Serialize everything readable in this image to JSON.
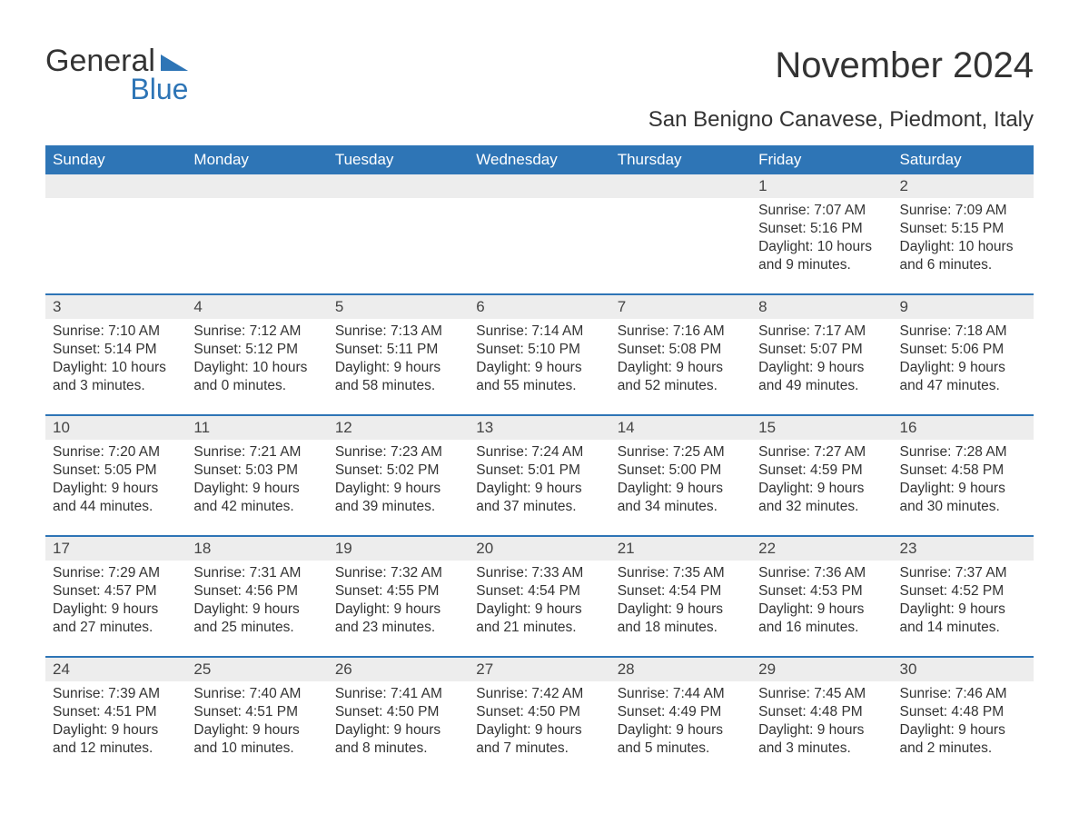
{
  "brand": {
    "word1": "General",
    "word2": "Blue"
  },
  "title": "November 2024",
  "location": "San Benigno Canavese, Piedmont, Italy",
  "colors": {
    "header_blue": "#2e75b6",
    "daynum_bg": "#ededed",
    "text": "#333333",
    "bg": "#ffffff"
  },
  "font": {
    "family": "Arial",
    "title_size": 40,
    "location_size": 24,
    "header_size": 17,
    "body_size": 15.5
  },
  "weekdays": [
    "Sunday",
    "Monday",
    "Tuesday",
    "Wednesday",
    "Thursday",
    "Friday",
    "Saturday"
  ],
  "weeks": [
    [
      null,
      null,
      null,
      null,
      null,
      {
        "n": "1",
        "sunrise": "Sunrise: 7:07 AM",
        "sunset": "Sunset: 5:16 PM",
        "daylight": "Daylight: 10 hours and 9 minutes."
      },
      {
        "n": "2",
        "sunrise": "Sunrise: 7:09 AM",
        "sunset": "Sunset: 5:15 PM",
        "daylight": "Daylight: 10 hours and 6 minutes."
      }
    ],
    [
      {
        "n": "3",
        "sunrise": "Sunrise: 7:10 AM",
        "sunset": "Sunset: 5:14 PM",
        "daylight": "Daylight: 10 hours and 3 minutes."
      },
      {
        "n": "4",
        "sunrise": "Sunrise: 7:12 AM",
        "sunset": "Sunset: 5:12 PM",
        "daylight": "Daylight: 10 hours and 0 minutes."
      },
      {
        "n": "5",
        "sunrise": "Sunrise: 7:13 AM",
        "sunset": "Sunset: 5:11 PM",
        "daylight": "Daylight: 9 hours and 58 minutes."
      },
      {
        "n": "6",
        "sunrise": "Sunrise: 7:14 AM",
        "sunset": "Sunset: 5:10 PM",
        "daylight": "Daylight: 9 hours and 55 minutes."
      },
      {
        "n": "7",
        "sunrise": "Sunrise: 7:16 AM",
        "sunset": "Sunset: 5:08 PM",
        "daylight": "Daylight: 9 hours and 52 minutes."
      },
      {
        "n": "8",
        "sunrise": "Sunrise: 7:17 AM",
        "sunset": "Sunset: 5:07 PM",
        "daylight": "Daylight: 9 hours and 49 minutes."
      },
      {
        "n": "9",
        "sunrise": "Sunrise: 7:18 AM",
        "sunset": "Sunset: 5:06 PM",
        "daylight": "Daylight: 9 hours and 47 minutes."
      }
    ],
    [
      {
        "n": "10",
        "sunrise": "Sunrise: 7:20 AM",
        "sunset": "Sunset: 5:05 PM",
        "daylight": "Daylight: 9 hours and 44 minutes."
      },
      {
        "n": "11",
        "sunrise": "Sunrise: 7:21 AM",
        "sunset": "Sunset: 5:03 PM",
        "daylight": "Daylight: 9 hours and 42 minutes."
      },
      {
        "n": "12",
        "sunrise": "Sunrise: 7:23 AM",
        "sunset": "Sunset: 5:02 PM",
        "daylight": "Daylight: 9 hours and 39 minutes."
      },
      {
        "n": "13",
        "sunrise": "Sunrise: 7:24 AM",
        "sunset": "Sunset: 5:01 PM",
        "daylight": "Daylight: 9 hours and 37 minutes."
      },
      {
        "n": "14",
        "sunrise": "Sunrise: 7:25 AM",
        "sunset": "Sunset: 5:00 PM",
        "daylight": "Daylight: 9 hours and 34 minutes."
      },
      {
        "n": "15",
        "sunrise": "Sunrise: 7:27 AM",
        "sunset": "Sunset: 4:59 PM",
        "daylight": "Daylight: 9 hours and 32 minutes."
      },
      {
        "n": "16",
        "sunrise": "Sunrise: 7:28 AM",
        "sunset": "Sunset: 4:58 PM",
        "daylight": "Daylight: 9 hours and 30 minutes."
      }
    ],
    [
      {
        "n": "17",
        "sunrise": "Sunrise: 7:29 AM",
        "sunset": "Sunset: 4:57 PM",
        "daylight": "Daylight: 9 hours and 27 minutes."
      },
      {
        "n": "18",
        "sunrise": "Sunrise: 7:31 AM",
        "sunset": "Sunset: 4:56 PM",
        "daylight": "Daylight: 9 hours and 25 minutes."
      },
      {
        "n": "19",
        "sunrise": "Sunrise: 7:32 AM",
        "sunset": "Sunset: 4:55 PM",
        "daylight": "Daylight: 9 hours and 23 minutes."
      },
      {
        "n": "20",
        "sunrise": "Sunrise: 7:33 AM",
        "sunset": "Sunset: 4:54 PM",
        "daylight": "Daylight: 9 hours and 21 minutes."
      },
      {
        "n": "21",
        "sunrise": "Sunrise: 7:35 AM",
        "sunset": "Sunset: 4:54 PM",
        "daylight": "Daylight: 9 hours and 18 minutes."
      },
      {
        "n": "22",
        "sunrise": "Sunrise: 7:36 AM",
        "sunset": "Sunset: 4:53 PM",
        "daylight": "Daylight: 9 hours and 16 minutes."
      },
      {
        "n": "23",
        "sunrise": "Sunrise: 7:37 AM",
        "sunset": "Sunset: 4:52 PM",
        "daylight": "Daylight: 9 hours and 14 minutes."
      }
    ],
    [
      {
        "n": "24",
        "sunrise": "Sunrise: 7:39 AM",
        "sunset": "Sunset: 4:51 PM",
        "daylight": "Daylight: 9 hours and 12 minutes."
      },
      {
        "n": "25",
        "sunrise": "Sunrise: 7:40 AM",
        "sunset": "Sunset: 4:51 PM",
        "daylight": "Daylight: 9 hours and 10 minutes."
      },
      {
        "n": "26",
        "sunrise": "Sunrise: 7:41 AM",
        "sunset": "Sunset: 4:50 PM",
        "daylight": "Daylight: 9 hours and 8 minutes."
      },
      {
        "n": "27",
        "sunrise": "Sunrise: 7:42 AM",
        "sunset": "Sunset: 4:50 PM",
        "daylight": "Daylight: 9 hours and 7 minutes."
      },
      {
        "n": "28",
        "sunrise": "Sunrise: 7:44 AM",
        "sunset": "Sunset: 4:49 PM",
        "daylight": "Daylight: 9 hours and 5 minutes."
      },
      {
        "n": "29",
        "sunrise": "Sunrise: 7:45 AM",
        "sunset": "Sunset: 4:48 PM",
        "daylight": "Daylight: 9 hours and 3 minutes."
      },
      {
        "n": "30",
        "sunrise": "Sunrise: 7:46 AM",
        "sunset": "Sunset: 4:48 PM",
        "daylight": "Daylight: 9 hours and 2 minutes."
      }
    ]
  ]
}
